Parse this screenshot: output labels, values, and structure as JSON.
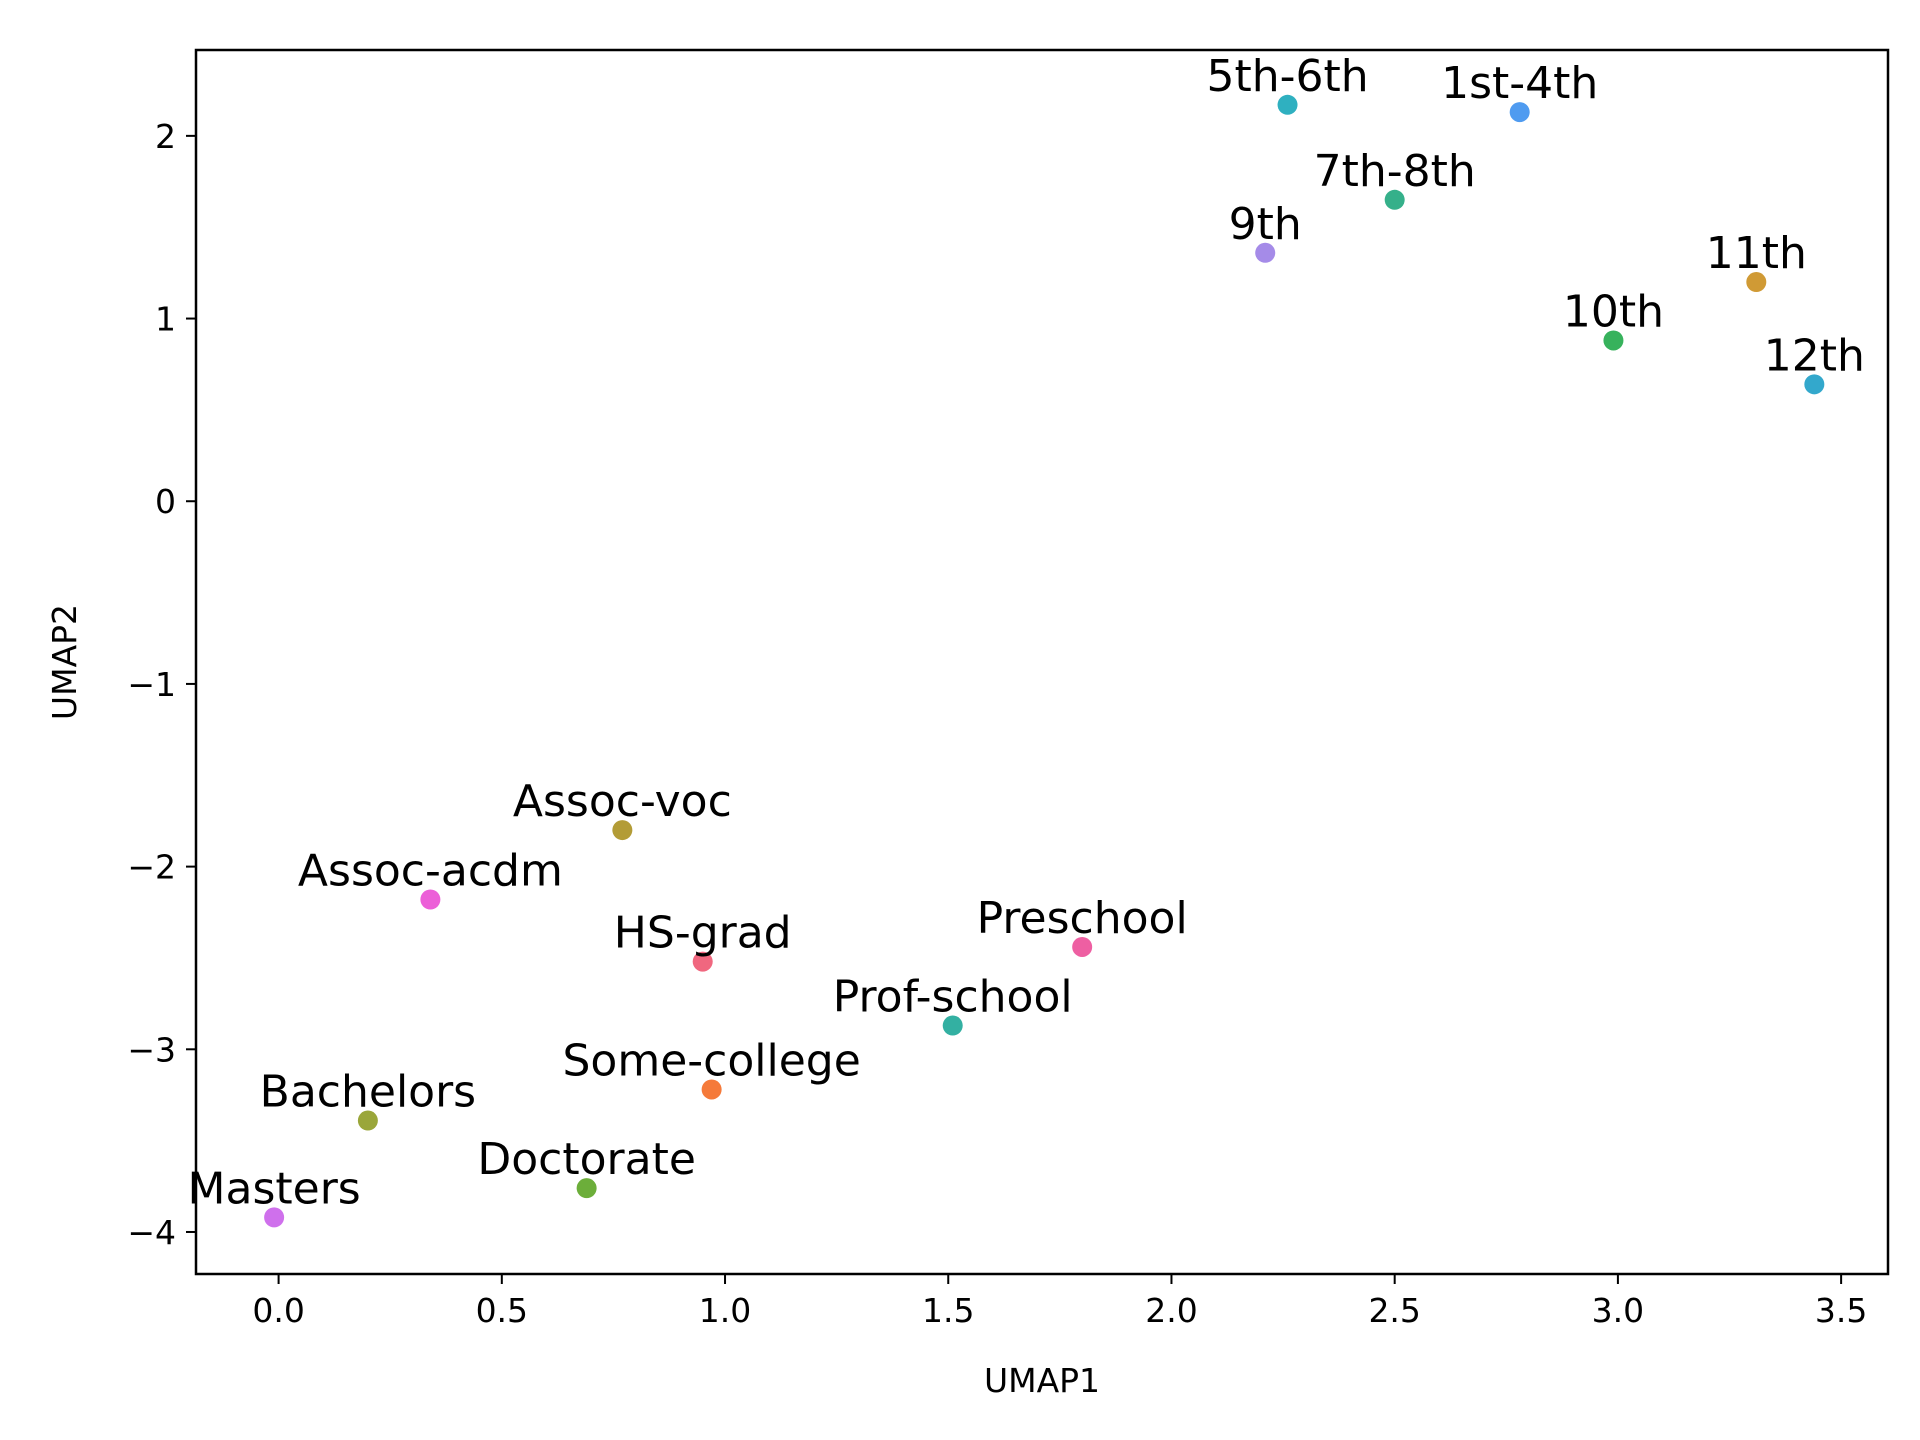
{
  "chart_data": {
    "type": "scatter",
    "xlabel": "UMAP1",
    "ylabel": "UMAP2",
    "xlim": [
      -0.185,
      3.605
    ],
    "ylim": [
      -4.23,
      2.47
    ],
    "xticks": [
      0.0,
      0.5,
      1.0,
      1.5,
      2.0,
      2.5,
      3.0,
      3.5
    ],
    "xtick_labels": [
      "0.0",
      "0.5",
      "1.0",
      "1.5",
      "2.0",
      "2.5",
      "3.0",
      "3.5"
    ],
    "yticks": [
      -4,
      -3,
      -2,
      -1,
      0,
      1,
      2
    ],
    "ytick_labels": [
      "−4",
      "−3",
      "−2",
      "−1",
      "0",
      "1",
      "2"
    ],
    "grid": false,
    "points": [
      {
        "label": "5th-6th",
        "x": 2.26,
        "y": 2.17,
        "color": "#2fb0c0"
      },
      {
        "label": "1st-4th",
        "x": 2.78,
        "y": 2.13,
        "color": "#4f9bf0"
      },
      {
        "label": "7th-8th",
        "x": 2.5,
        "y": 1.65,
        "color": "#35b08a"
      },
      {
        "label": "9th",
        "x": 2.21,
        "y": 1.36,
        "color": "#a58be8"
      },
      {
        "label": "11th",
        "x": 3.31,
        "y": 1.2,
        "color": "#d09a35"
      },
      {
        "label": "10th",
        "x": 2.99,
        "y": 0.88,
        "color": "#37b25c"
      },
      {
        "label": "12th",
        "x": 3.44,
        "y": 0.64,
        "color": "#33a8cc"
      },
      {
        "label": "Assoc-voc",
        "x": 0.77,
        "y": -1.8,
        "color": "#b39c36"
      },
      {
        "label": "Assoc-acdm",
        "x": 0.34,
        "y": -2.18,
        "color": "#ec5fd8"
      },
      {
        "label": "HS-grad",
        "x": 0.95,
        "y": -2.52,
        "color": "#f0677f"
      },
      {
        "label": "Preschool",
        "x": 1.8,
        "y": -2.44,
        "color": "#ee5fa2"
      },
      {
        "label": "Prof-school",
        "x": 1.51,
        "y": -2.87,
        "color": "#33b0a2"
      },
      {
        "label": "Some-college",
        "x": 0.97,
        "y": -3.22,
        "color": "#f57a3a"
      },
      {
        "label": "Bachelors",
        "x": 0.2,
        "y": -3.39,
        "color": "#9aa63a"
      },
      {
        "label": "Doctorate",
        "x": 0.69,
        "y": -3.76,
        "color": "#6cae3a"
      },
      {
        "label": "Masters",
        "x": -0.01,
        "y": -3.92,
        "color": "#cf70ec"
      }
    ]
  }
}
